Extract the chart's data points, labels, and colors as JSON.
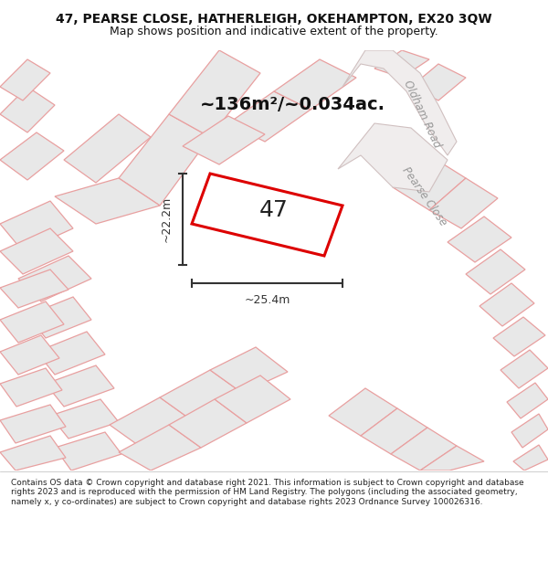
{
  "title_line1": "47, PEARSE CLOSE, HATHERLEIGH, OKEHAMPTON, EX20 3QW",
  "title_line2": "Map shows position and indicative extent of the property.",
  "area_text": "~136m²/~0.034ac.",
  "label_47": "47",
  "dim_width": "~25.4m",
  "dim_height": "~22.2m",
  "road_label1": "Oldham Road",
  "road_label2": "Pearse Close",
  "footer_text": "Contains OS data © Crown copyright and database right 2021. This information is subject to Crown copyright and database rights 2023 and is reproduced with the permission of HM Land Registry. The polygons (including the associated geometry, namely x, y co-ordinates) are subject to Crown copyright and database rights 2023 Ordnance Survey 100026316.",
  "map_bg": "#ffffff",
  "property_fill": "#ffffff",
  "property_edge": "#dd0000",
  "neighbor_fill": "#e8e8e8",
  "neighbor_edge": "#e8a0a0",
  "road_fill": "#f0eded",
  "road_edge": "#d0c0c0",
  "title_bg": "#ffffff",
  "footer_bg": "#ffffff",
  "dim_color": "#333333",
  "road_text_color": "#999999",
  "area_text_color": "#111111"
}
